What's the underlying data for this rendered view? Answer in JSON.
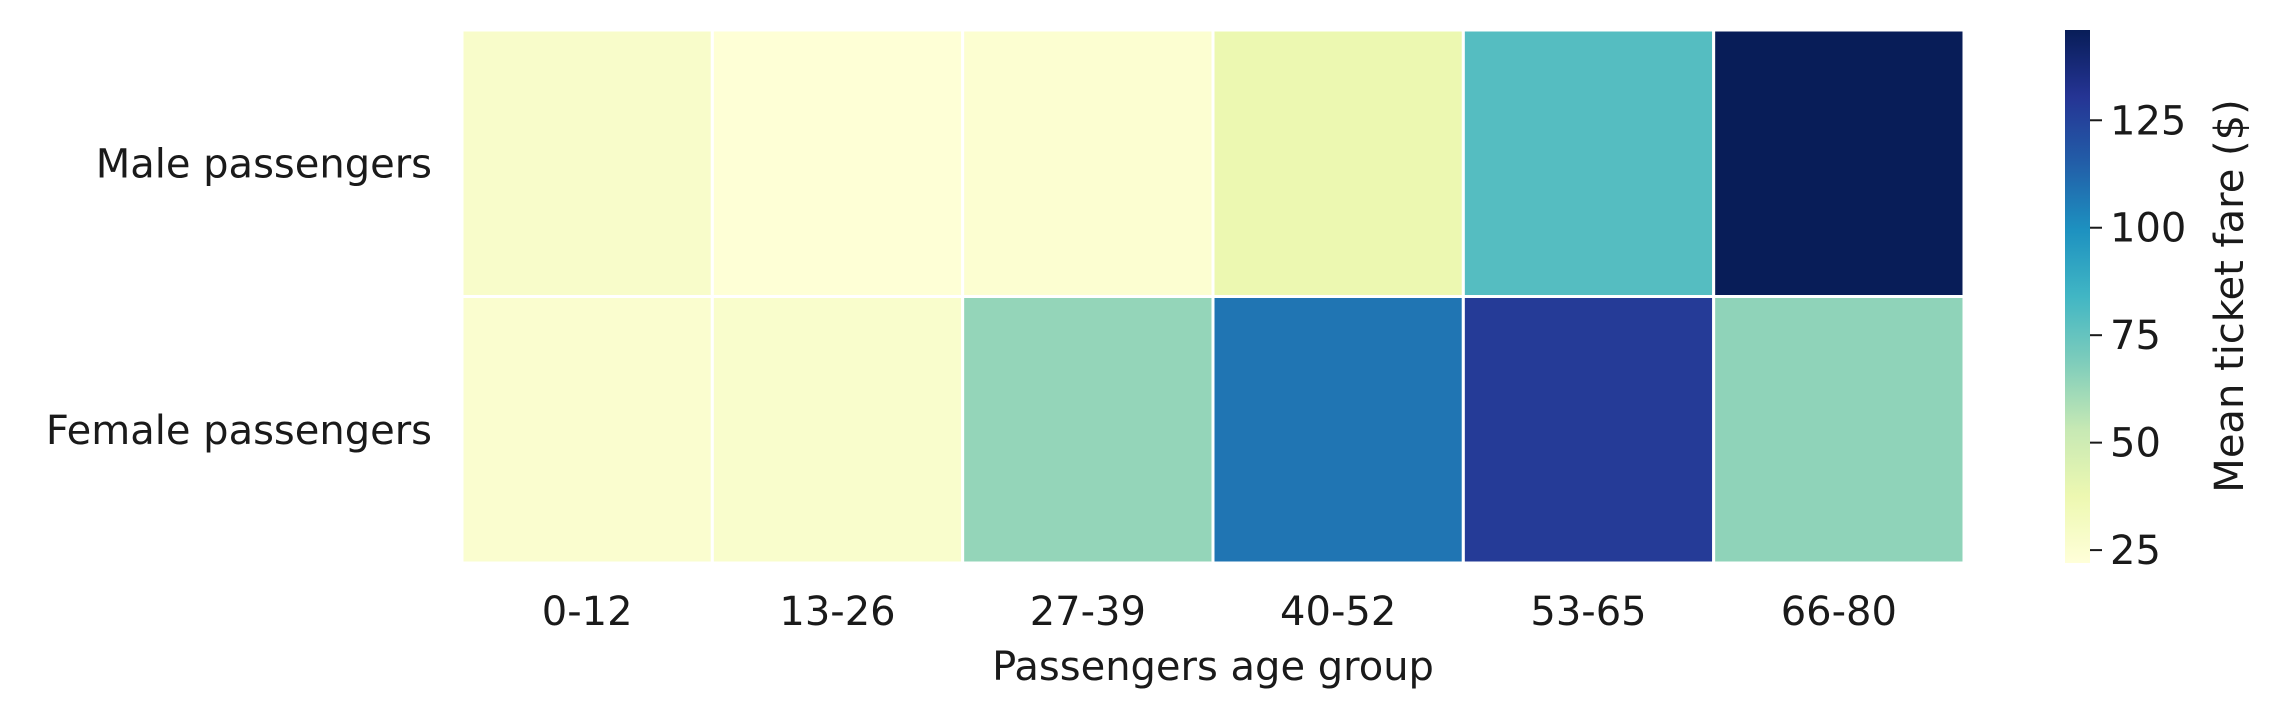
{
  "chart_data": {
    "type": "heatmap",
    "title": "",
    "xlabel": "Passengers age group",
    "ylabel": "",
    "colorbar_label": "Mean ticket fare ($)",
    "colormap": "YlGnBu",
    "x_categories": [
      "0-12",
      "13-26",
      "27-39",
      "40-52",
      "53-65",
      "66-80"
    ],
    "y_categories": [
      "Male passengers",
      "Female passengers"
    ],
    "values": [
      [
        28,
        23,
        25,
        38,
        79,
        146
      ],
      [
        26,
        27,
        64,
        108,
        128,
        65
      ]
    ],
    "vmin": 22,
    "vmax": 146,
    "colorbar_ticks": [
      25,
      50,
      75,
      100,
      125
    ],
    "grid": false,
    "cell_border_color": "#ffffff"
  }
}
